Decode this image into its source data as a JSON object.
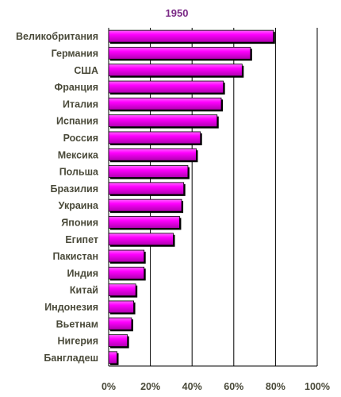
{
  "chart_data": {
    "type": "bar",
    "orientation": "horizontal",
    "title": "1950",
    "categories": [
      "Великобритания",
      "Германия",
      "США",
      "Франция",
      "Италия",
      "Испания",
      "Россия",
      "Мексика",
      "Польша",
      "Бразилия",
      "Украина",
      "Япония",
      "Египет",
      "Пакистан",
      "Индия",
      "Китай",
      "Индонезия",
      "Вьетнам",
      "Нигерия",
      "Бангладеш"
    ],
    "values": [
      79,
      68,
      64,
      55,
      54,
      52,
      44,
      42,
      38,
      36,
      35,
      34,
      31,
      17,
      17,
      13,
      12,
      11,
      9,
      4
    ],
    "xlim": [
      0,
      100
    ],
    "xticks": [
      "0%",
      "20%",
      "40%",
      "60%",
      "80%",
      "100%"
    ],
    "grid": true,
    "colors": {
      "bar": "#ff00ff",
      "bar_shadow": "#000000",
      "grid": "#000000",
      "title": "#7b2a86",
      "text": "#4a4a3a"
    }
  }
}
